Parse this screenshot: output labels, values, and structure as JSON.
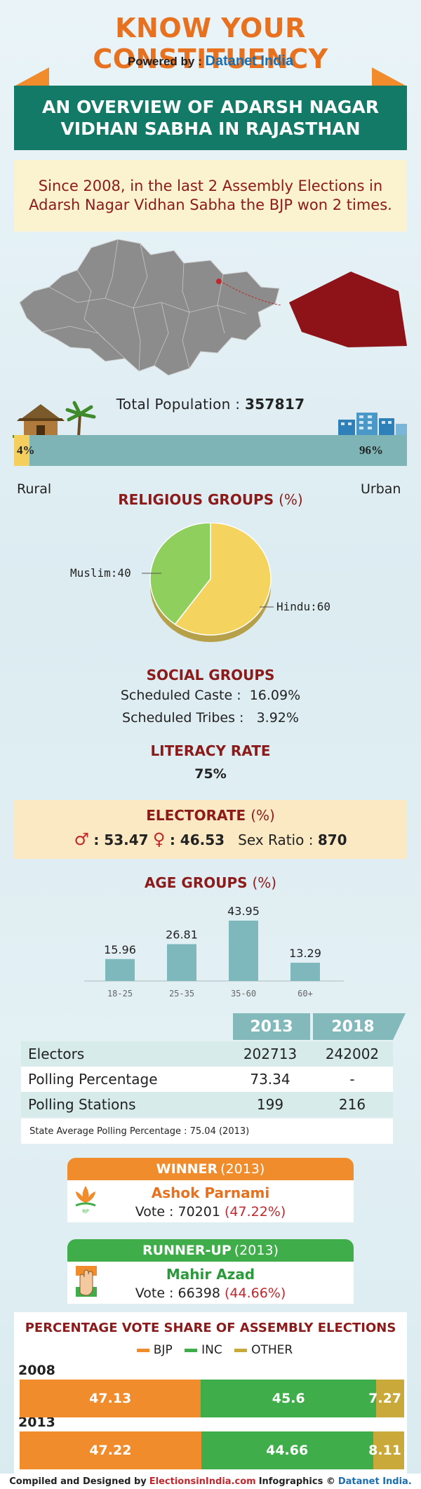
{
  "header": {
    "title": "KNOW YOUR CONSTITUENCY",
    "powered_prefix": "Powered by :",
    "powered_brand": "Datanet India"
  },
  "banner": {
    "line1": "AN OVERVIEW OF ADARSH NAGAR",
    "line2": "VIDHAN SABHA IN RAJASTHAN"
  },
  "summary": "Since 2008, in the last 2 Assembly Elections in Adarsh Nagar Vidhan Sabha the BJP won 2 times.",
  "population": {
    "label": "Total Population :",
    "value": "357817",
    "rural_pct": "4%",
    "urban_pct": "96%",
    "rural_fraction": 0.04,
    "rural_label": "Rural",
    "urban_label": "Urban"
  },
  "religious": {
    "title": "RELIGIOUS GROUPS",
    "unit": "(%)",
    "muslim_label": "Muslim:40",
    "hindu_label": "Hindu:60"
  },
  "social": {
    "title": "SOCIAL GROUPS",
    "sc": "Scheduled Caste :  16.09%",
    "st": "Scheduled Tribes :   3.92%"
  },
  "literacy": {
    "title": "LITERACY RATE",
    "value": "75%"
  },
  "electorate": {
    "title": "ELECTORATE",
    "unit": "(%)",
    "male": ": 53.47",
    "female": ": 46.53",
    "sex_ratio_label": "Sex Ratio :",
    "sex_ratio": "870"
  },
  "age": {
    "title": "AGE GROUPS",
    "unit": "(%)"
  },
  "table": {
    "years": [
      "2013",
      "2018"
    ],
    "rows": [
      {
        "label": "Electors",
        "v2013": "202713",
        "v2018": "242002"
      },
      {
        "label": "Polling Percentage",
        "v2013": "73.34",
        "v2018": "-"
      },
      {
        "label": "Polling Stations",
        "v2013": "199",
        "v2018": "216"
      }
    ],
    "note": "State Average Polling Percentage : 75.04 (2013)"
  },
  "winner": {
    "head": "WINNER",
    "year": "(2013)",
    "name": "Ashok Parnami",
    "vote_prefix": "Vote : 70201",
    "vote_pct": "(47.22%)"
  },
  "runner": {
    "head": "RUNNER-UP",
    "year": "(2013)",
    "name": "Mahir Azad",
    "vote_prefix": "Vote : 66398",
    "vote_pct": "(44.66%)"
  },
  "vote_share": {
    "title": "PERCENTAGE VOTE SHARE OF ASSEMBLY ELECTIONS",
    "legend": [
      "BJP",
      "INC",
      "OTHER"
    ]
  },
  "footer": {
    "prefix": "Compiled and Designed by",
    "site": "ElectionsinIndia.com",
    "mid": "Infographics ©",
    "brand": "Datanet India."
  },
  "colors": {
    "bjp": "#f08c2c",
    "inc": "#3fae4a",
    "other": "#c9a93a",
    "maroon": "#8c1a1a",
    "teal": "#137a68"
  },
  "chart_data": [
    {
      "type": "pie",
      "labels": [
        "Muslim",
        "Hindu"
      ],
      "values": [
        40,
        60
      ],
      "title": "RELIGIOUS GROUPS (%)"
    },
    {
      "type": "bar",
      "categories": [
        "18-25",
        "25-35",
        "35-60",
        "60+"
      ],
      "values": [
        15.96,
        26.81,
        43.95,
        13.29
      ],
      "title": "AGE GROUPS (%)",
      "ylim": [
        0,
        50
      ]
    },
    {
      "type": "bar",
      "title": "PERCENTAGE VOTE SHARE OF ASSEMBLY ELECTIONS",
      "orientation": "horizontal-stacked",
      "categories": [
        "2008",
        "2013"
      ],
      "series": [
        {
          "name": "BJP",
          "values": [
            47.13,
            47.22
          ]
        },
        {
          "name": "INC",
          "values": [
            45.6,
            44.66
          ]
        },
        {
          "name": "OTHER",
          "values": [
            7.27,
            8.11
          ]
        }
      ]
    }
  ]
}
